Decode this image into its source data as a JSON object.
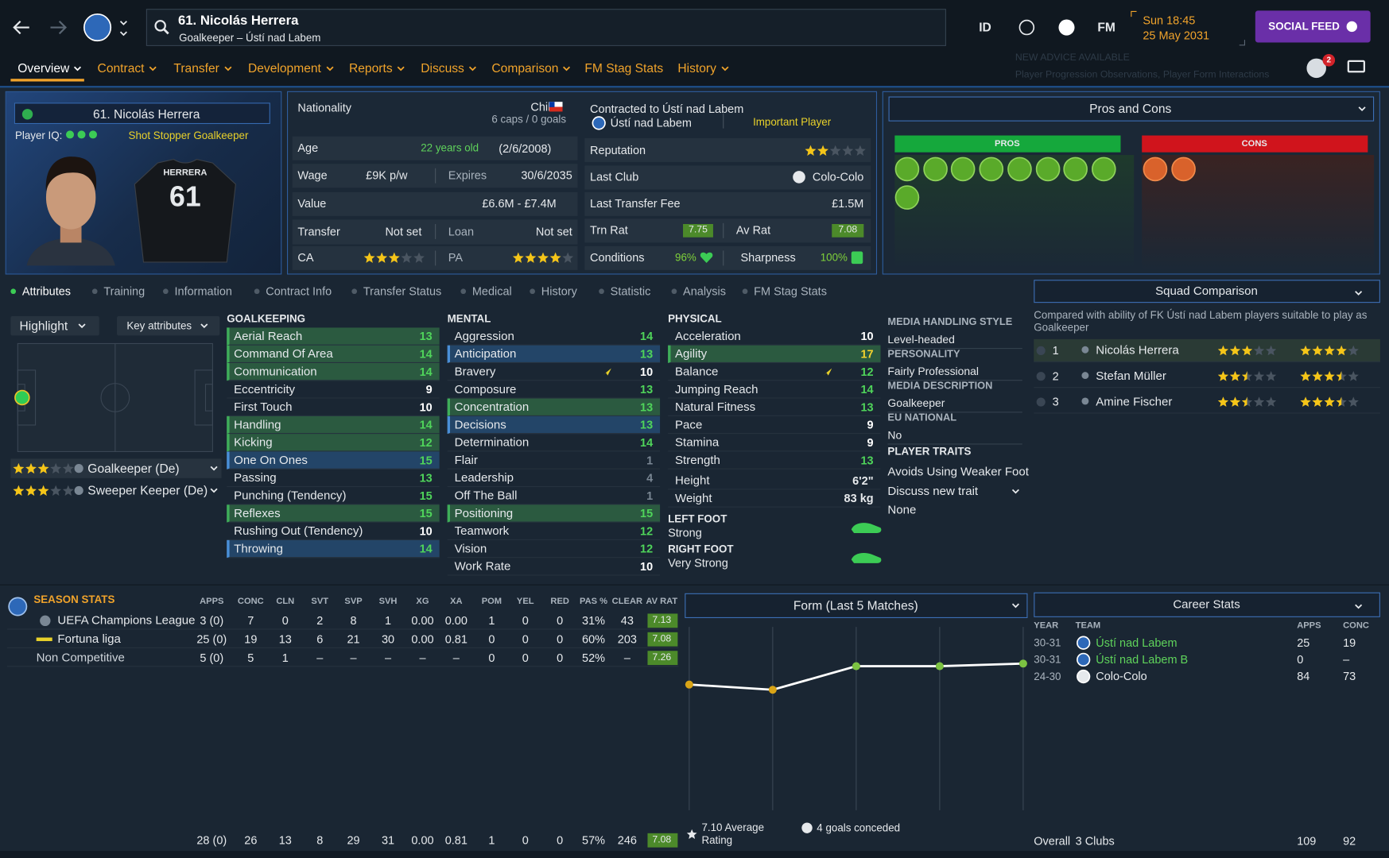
{
  "header": {
    "title": "61. Nicolás Herrera",
    "subtitle": "Goalkeeper – Ústí nad Labem",
    "id_button": "ID",
    "fm_button": "FM",
    "day_time": "Sun 18:45",
    "date": "25 May 2031",
    "social_feed": "SOCIAL FEED",
    "advice_title": "NEW ADVICE AVAILABLE",
    "advice_text": "Player Progression Observations, Player Form Interactions",
    "notifications": "2"
  },
  "nav": {
    "items": [
      "Overview",
      "Contract",
      "Transfer",
      "Development",
      "Reports",
      "Discuss",
      "Comparison",
      "FM Stag Stats",
      "History"
    ],
    "dropdowns": [
      true,
      true,
      true,
      true,
      true,
      true,
      true,
      false,
      true
    ],
    "active": 0
  },
  "profile": {
    "name": "61. Nicolás Herrera",
    "iq_label": "Player IQ:",
    "iq_dots": 3,
    "role": "Shot Stopper Goalkeeper",
    "shirt_name": "HERRERA",
    "shirt_number": "61"
  },
  "details": {
    "nationality_label": "Nationality",
    "nationality": "Chile",
    "caps": "6 caps / 0 goals",
    "age_label": "Age",
    "age": "22 years old",
    "dob": "(2/6/2008)",
    "wage_label": "Wage",
    "wage": "£9K p/w",
    "expires_label": "Expires",
    "expires": "30/6/2035",
    "value_label": "Value",
    "value": "£6.6M - £7.4M",
    "transfer_label": "Transfer",
    "transfer": "Not set",
    "loan_label": "Loan",
    "loan": "Not set",
    "ca_label": "CA",
    "ca_stars": 3,
    "pa_label": "PA",
    "pa_stars": 4,
    "contract_label": "Contracted to Ústí nad Labem",
    "club": "Ústí nad Labem",
    "squad_status": "Important Player",
    "reputation_label": "Reputation",
    "reputation_stars": 2,
    "last_club_label": "Last Club",
    "last_club": "Colo-Colo",
    "fee_label": "Last Transfer Fee",
    "fee": "£1.5M",
    "trn_rat_label": "Trn Rat",
    "trn_rat": "7.75",
    "av_rat_label": "Av Rat",
    "av_rat": "7.08",
    "conditions_label": "Conditions",
    "conditions": "96%",
    "sharpness_label": "Sharpness",
    "sharpness": "100%"
  },
  "pros_cons": {
    "title": "Pros and Cons",
    "pros": "PROS",
    "cons": "CONS",
    "pros_count": 9,
    "cons_count": 2
  },
  "tabs": {
    "items": [
      "Attributes",
      "Training",
      "Information",
      "Contract Info",
      "Transfer Status",
      "Medical",
      "History",
      "Statistic",
      "Analysis",
      "FM Stag Stats"
    ],
    "active": 0
  },
  "attr_panel": {
    "highlight": "Highlight",
    "filter": "Key attributes",
    "roles": [
      {
        "name": "Goalkeeper (De)",
        "stars": 3
      },
      {
        "name": "Sweeper Keeper (De)",
        "stars": 3
      }
    ]
  },
  "attributes": [
    {
      "title": "GOALKEEPING",
      "items": [
        {
          "name": "Aerial Reach",
          "value": 13,
          "highlight": "green"
        },
        {
          "name": "Command Of Area",
          "value": 14,
          "highlight": "green"
        },
        {
          "name": "Communication",
          "value": 14,
          "highlight": "green"
        },
        {
          "name": "Eccentricity",
          "value": 9
        },
        {
          "name": "First Touch",
          "value": 10
        },
        {
          "name": "Handling",
          "value": 14,
          "highlight": "green"
        },
        {
          "name": "Kicking",
          "value": 12,
          "highlight": "green"
        },
        {
          "name": "One On Ones",
          "value": 15,
          "highlight": "blue"
        },
        {
          "name": "Passing",
          "value": 13
        },
        {
          "name": "Punching (Tendency)",
          "value": 15
        },
        {
          "name": "Reflexes",
          "value": 15,
          "highlight": "green"
        },
        {
          "name": "Rushing Out (Tendency)",
          "value": 10
        },
        {
          "name": "Throwing",
          "value": 14,
          "highlight": "blue"
        }
      ]
    },
    {
      "title": "MENTAL",
      "items": [
        {
          "name": "Aggression",
          "value": 14
        },
        {
          "name": "Anticipation",
          "value": 13,
          "highlight": "blue"
        },
        {
          "name": "Bravery",
          "value": 10,
          "trend": "up"
        },
        {
          "name": "Composure",
          "value": 13
        },
        {
          "name": "Concentration",
          "value": 13,
          "highlight": "green"
        },
        {
          "name": "Decisions",
          "value": 13,
          "highlight": "blue"
        },
        {
          "name": "Determination",
          "value": 14
        },
        {
          "name": "Flair",
          "value": 1
        },
        {
          "name": "Leadership",
          "value": 4
        },
        {
          "name": "Off The Ball",
          "value": 1
        },
        {
          "name": "Positioning",
          "value": 15,
          "highlight": "green"
        },
        {
          "name": "Teamwork",
          "value": 12
        },
        {
          "name": "Vision",
          "value": 12
        },
        {
          "name": "Work Rate",
          "value": 10
        }
      ]
    },
    {
      "title": "PHYSICAL",
      "items": [
        {
          "name": "Acceleration",
          "value": 10
        },
        {
          "name": "Agility",
          "value": 17,
          "highlight": "green"
        },
        {
          "name": "Balance",
          "value": 12,
          "trend": "up"
        },
        {
          "name": "Jumping Reach",
          "value": 14
        },
        {
          "name": "Natural Fitness",
          "value": 13
        },
        {
          "name": "Pace",
          "value": 9
        },
        {
          "name": "Stamina",
          "value": 9
        },
        {
          "name": "Strength",
          "value": 13
        }
      ]
    }
  ],
  "measures": [
    {
      "name": "Height",
      "value": "6'2\""
    },
    {
      "name": "Weight",
      "value": "83 kg"
    }
  ],
  "feet": [
    {
      "label": "LEFT FOOT",
      "value": "Strong"
    },
    {
      "label": "RIGHT FOOT",
      "value": "Very Strong"
    }
  ],
  "personal": [
    {
      "label": "MEDIA HANDLING STYLE",
      "value": "Level-headed"
    },
    {
      "label": "PERSONALITY",
      "value": "Fairly Professional"
    },
    {
      "label": "MEDIA DESCRIPTION",
      "value": "Goalkeeper"
    },
    {
      "label": "EU NATIONAL",
      "value": "No"
    }
  ],
  "traits": {
    "title": "PLAYER TRAITS",
    "items": [
      "Avoids Using Weaker Foot"
    ],
    "discuss": "Discuss new trait",
    "none": "None"
  },
  "squad_comparison": {
    "title": "Squad Comparison",
    "note": "Compared with ability of FK Ústí nad Labem players suitable to play as Goalkeeper",
    "rows": [
      {
        "rank": "1",
        "name": "Nicolás Herrera",
        "ca": 3,
        "pa": 4
      },
      {
        "rank": "2",
        "name": "Stefan Müller",
        "ca": 2.5,
        "pa": 3.5
      },
      {
        "rank": "3",
        "name": "Amine Fischer",
        "ca": 2.5,
        "pa": 3.5
      }
    ]
  },
  "season_stats": {
    "title": "SEASON STATS",
    "columns": [
      "APPS",
      "CONC",
      "CLN",
      "SVT",
      "SVP",
      "SVH",
      "XG",
      "XA",
      "POM",
      "YEL",
      "RED",
      "PAS %",
      "CLEAR",
      "AV RAT"
    ],
    "rows": [
      {
        "competition": "UEFA Champions League",
        "values": [
          "3 (0)",
          "7",
          "0",
          "2",
          "8",
          "1",
          "0.00",
          "0.00",
          "1",
          "0",
          "0",
          "31%",
          "43",
          "7.13"
        ]
      },
      {
        "competition": "Fortuna liga",
        "values": [
          "25 (0)",
          "19",
          "13",
          "6",
          "21",
          "30",
          "0.00",
          "0.81",
          "0",
          "0",
          "0",
          "60%",
          "203",
          "7.08"
        ]
      },
      {
        "competition": "Non Competitive",
        "values": [
          "5 (0)",
          "5",
          "1",
          "–",
          "–",
          "–",
          "–",
          "–",
          "0",
          "0",
          "0",
          "52%",
          "–",
          "7.26"
        ]
      }
    ],
    "total": [
      "28 (0)",
      "26",
      "13",
      "8",
      "29",
      "31",
      "0.00",
      "0.81",
      "1",
      "0",
      "0",
      "57%",
      "246",
      "7.08"
    ]
  },
  "form": {
    "type": "line",
    "title": "Form (Last 5 Matches)",
    "values": [
      6.9,
      6.8,
      7.25,
      7.25,
      7.3
    ],
    "point_colors": [
      "#d9a416",
      "#d9a416",
      "#7cc242",
      "#7cc242",
      "#7cc242"
    ],
    "line_color": "#ffffff",
    "ylim": [
      4.5,
      8
    ],
    "average": "7.10 Average Rating",
    "conceded": "4 goals conceded"
  },
  "career": {
    "title": "Career Stats",
    "columns": [
      "YEAR",
      "TEAM",
      "APPS",
      "CONC"
    ],
    "rows": [
      {
        "year": "30-31",
        "team": "Ústí nad Labem",
        "apps": "25",
        "conc": "19",
        "color": "#5fd35b"
      },
      {
        "year": "30-31",
        "team": "Ústí nad Labem B",
        "apps": "0",
        "conc": "–",
        "color": "#5fd35b"
      },
      {
        "year": "24-30",
        "team": "Colo-Colo",
        "apps": "84",
        "conc": "73",
        "color": "#e6e9ec"
      }
    ],
    "total": {
      "label": "Overall",
      "clubs": "3 Clubs",
      "apps": "109",
      "conc": "92"
    }
  }
}
